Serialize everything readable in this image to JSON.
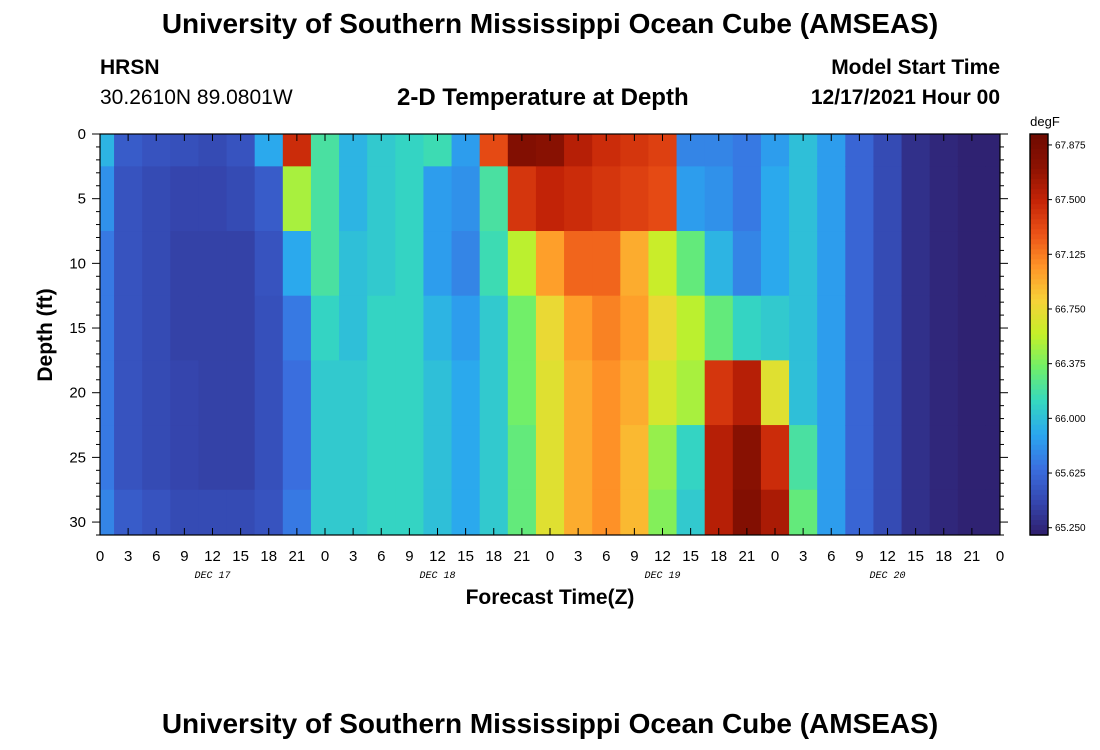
{
  "page": {
    "title_top": "University of Southern Mississippi Ocean Cube (AMSEAS)",
    "title_bottom": "University of Southern Mississippi Ocean Cube (AMSEAS)",
    "station": "HRSN",
    "coords": "30.2610N  89.0801W",
    "subtitle": "2-D Temperature at Depth",
    "model_start_label": "Model Start Time",
    "model_start_value": "12/17/2021 Hour 00"
  },
  "chart_data": {
    "type": "heatmap",
    "xlabel": "Forecast Time(Z)",
    "ylabel": "Depth (ft)",
    "x_tick_labels": [
      "0",
      "3",
      "6",
      "9",
      "12",
      "15",
      "18",
      "21",
      "0",
      "3",
      "6",
      "9",
      "12",
      "15",
      "18",
      "21",
      "0",
      "3",
      "6",
      "9",
      "12",
      "15",
      "18",
      "21",
      "0",
      "3",
      "6",
      "9",
      "12",
      "15",
      "18",
      "21",
      "0"
    ],
    "date_labels": [
      "DEC 17",
      "DEC 18",
      "DEC 19",
      "DEC 20"
    ],
    "y_ticks": [
      0,
      5,
      10,
      15,
      20,
      25,
      30
    ],
    "ylim": [
      0,
      31
    ],
    "xlim_hours": [
      0,
      96
    ],
    "colorbar": {
      "units": "degF",
      "tick_labels": [
        "67.875",
        "67.500",
        "67.125",
        "66.750",
        "66.375",
        "66.000",
        "65.625",
        "65.250"
      ],
      "range": [
        65.2,
        67.95
      ]
    },
    "hours": [
      0,
      3,
      6,
      9,
      12,
      15,
      18,
      21,
      24,
      27,
      30,
      33,
      36,
      39,
      42,
      45,
      48,
      51,
      54,
      57,
      60,
      63,
      66,
      69,
      72,
      75,
      78,
      81,
      84,
      87,
      90,
      93,
      96
    ],
    "depths": [
      0,
      5,
      10,
      15,
      20,
      25,
      30
    ],
    "values_degF": [
      [
        65.95,
        65.55,
        65.5,
        65.48,
        65.45,
        65.5,
        65.9,
        67.45,
        66.2,
        65.95,
        66.05,
        66.1,
        66.15,
        65.85,
        67.3,
        67.8,
        67.75,
        67.55,
        67.45,
        67.4,
        67.35,
        65.75,
        65.75,
        65.7,
        65.85,
        66.0,
        65.85,
        65.6,
        65.45,
        65.3,
        65.25,
        65.22,
        65.22
      ],
      [
        65.8,
        65.5,
        65.45,
        65.42,
        65.42,
        65.45,
        65.55,
        66.5,
        66.2,
        65.95,
        66.05,
        66.1,
        65.85,
        65.8,
        66.2,
        67.4,
        67.5,
        67.45,
        67.4,
        67.35,
        67.3,
        65.85,
        65.8,
        65.7,
        65.9,
        66.0,
        65.85,
        65.6,
        65.45,
        65.3,
        65.25,
        65.22,
        65.22
      ],
      [
        65.7,
        65.5,
        65.45,
        65.4,
        65.4,
        65.4,
        65.5,
        65.9,
        66.2,
        66.0,
        66.05,
        66.1,
        65.85,
        65.75,
        66.15,
        66.55,
        67.0,
        67.2,
        67.2,
        66.95,
        66.6,
        66.3,
        65.95,
        65.75,
        65.9,
        66.0,
        65.85,
        65.6,
        65.45,
        65.3,
        65.25,
        65.22,
        65.22
      ],
      [
        65.7,
        65.5,
        65.45,
        65.4,
        65.4,
        65.4,
        65.48,
        65.7,
        66.1,
        66.0,
        66.1,
        66.1,
        65.95,
        65.85,
        66.05,
        66.35,
        66.75,
        67.0,
        67.1,
        67.0,
        66.75,
        66.55,
        66.3,
        66.1,
        66.05,
        66.0,
        65.85,
        65.6,
        65.45,
        65.3,
        65.25,
        65.22,
        65.22
      ],
      [
        65.7,
        65.5,
        65.45,
        65.42,
        65.4,
        65.4,
        65.48,
        65.65,
        66.05,
        66.05,
        66.1,
        66.1,
        66.0,
        65.9,
        66.05,
        66.35,
        66.7,
        66.95,
        67.05,
        66.95,
        66.65,
        66.5,
        67.4,
        67.55,
        66.7,
        66.0,
        65.85,
        65.6,
        65.45,
        65.3,
        65.25,
        65.22,
        65.22
      ],
      [
        65.7,
        65.5,
        65.45,
        65.42,
        65.4,
        65.4,
        65.48,
        65.65,
        66.05,
        66.05,
        66.1,
        66.1,
        66.0,
        65.9,
        66.05,
        66.3,
        66.7,
        66.95,
        67.05,
        66.9,
        66.45,
        66.1,
        67.55,
        67.75,
        67.45,
        66.2,
        65.85,
        65.6,
        65.45,
        65.3,
        65.25,
        65.22,
        65.22
      ],
      [
        65.75,
        65.55,
        65.5,
        65.45,
        65.45,
        65.45,
        65.5,
        65.7,
        66.05,
        66.05,
        66.1,
        66.1,
        66.0,
        65.9,
        66.05,
        66.3,
        66.7,
        66.95,
        67.05,
        66.9,
        66.4,
        66.05,
        67.55,
        67.8,
        67.6,
        66.3,
        65.85,
        65.6,
        65.45,
        65.3,
        65.25,
        65.22,
        65.22
      ]
    ]
  },
  "colors": {
    "stops": [
      "#2e1e6c",
      "#3547b0",
      "#3a6fe0",
      "#2aa6f0",
      "#35d8c0",
      "#6fef6a",
      "#c4f028",
      "#f6d238",
      "#ff9628",
      "#ec5217",
      "#c42407",
      "#8c1202",
      "#6e0a01"
    ]
  }
}
